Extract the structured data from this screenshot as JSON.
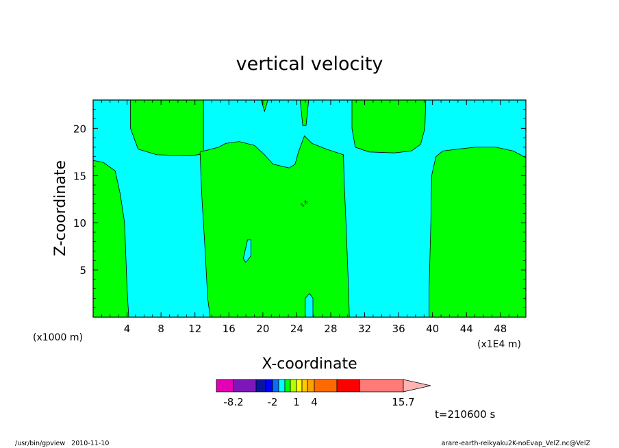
{
  "chart_data": {
    "type": "heatmap",
    "title": "vertical velocity",
    "xlabel": "X-coordinate",
    "ylabel": "Z-coordinate",
    "x_unit_left": "(x1000 m)",
    "x_unit_right": "(x1E4 m)",
    "xlim": [
      0,
      51
    ],
    "ylim": [
      0,
      23
    ],
    "xticks": [
      "4",
      "8",
      "12",
      "16",
      "20",
      "24",
      "28",
      "32",
      "36",
      "40",
      "44",
      "48"
    ],
    "yticks": [
      "5",
      "10",
      "15",
      "20"
    ],
    "xtick_values": [
      4,
      8,
      12,
      16,
      20,
      24,
      28,
      32,
      36,
      40,
      44,
      48
    ],
    "ytick_values": [
      5,
      10,
      15,
      20
    ],
    "regions": [
      {
        "label": "positive",
        "color": "#00ff00",
        "polygon": [
          [
            0,
            0
          ],
          [
            4.2,
            0
          ],
          [
            4.0,
            3
          ],
          [
            3.7,
            10
          ],
          [
            3.2,
            13
          ],
          [
            2.6,
            15.5
          ],
          [
            1.2,
            16.4
          ],
          [
            0,
            16.6
          ]
        ]
      },
      {
        "label": "positive",
        "color": "#00ff00",
        "polygon": [
          [
            4.4,
            23
          ],
          [
            4.4,
            20
          ],
          [
            5.3,
            17.8
          ],
          [
            7.5,
            17.2
          ],
          [
            11.5,
            17.1
          ],
          [
            13,
            17.3
          ],
          [
            13.0,
            23
          ]
        ]
      },
      {
        "label": "positive",
        "color": "#00ff00",
        "polygon": [
          [
            13.8,
            0
          ],
          [
            30.2,
            0
          ],
          [
            30.1,
            3
          ],
          [
            29.8,
            10
          ],
          [
            29.6,
            14
          ],
          [
            29.5,
            17.2
          ],
          [
            27.5,
            17.8
          ],
          [
            25.8,
            18.4
          ],
          [
            24.9,
            19.2
          ],
          [
            24.2,
            17.5
          ],
          [
            23.8,
            16.2
          ],
          [
            23.1,
            15.8
          ],
          [
            21.2,
            16.2
          ],
          [
            20.1,
            17.3
          ],
          [
            19.0,
            18.2
          ],
          [
            17.2,
            18.6
          ],
          [
            15.6,
            18.4
          ],
          [
            14.8,
            18.0
          ],
          [
            12.6,
            17.5
          ],
          [
            12.8,
            13
          ],
          [
            13.2,
            7
          ],
          [
            13.5,
            2
          ]
        ]
      },
      {
        "label": "positive",
        "color": "#00ff00",
        "polygon": [
          [
            19.8,
            23
          ],
          [
            20.2,
            21.8
          ],
          [
            20.6,
            23
          ]
        ]
      },
      {
        "label": "positive",
        "color": "#00ff00",
        "polygon": [
          [
            24.4,
            23
          ],
          [
            24.7,
            20.3
          ],
          [
            25.1,
            20.3
          ],
          [
            25.4,
            23
          ]
        ]
      },
      {
        "label": "positive",
        "color": "#00ff00",
        "polygon": [
          [
            30.5,
            23
          ],
          [
            30.5,
            20
          ],
          [
            30.9,
            18
          ],
          [
            32.5,
            17.5
          ],
          [
            35.5,
            17.4
          ],
          [
            37.5,
            17.6
          ],
          [
            38.6,
            18.3
          ],
          [
            39.1,
            20
          ],
          [
            39.2,
            23
          ]
        ]
      },
      {
        "label": "positive",
        "color": "#00ff00",
        "polygon": [
          [
            39.6,
            0
          ],
          [
            51,
            0
          ],
          [
            51,
            16.9
          ],
          [
            49.5,
            17.6
          ],
          [
            47.5,
            18.0
          ],
          [
            45.0,
            18.0
          ],
          [
            43.0,
            17.8
          ],
          [
            41.2,
            17.6
          ],
          [
            40.4,
            17.0
          ],
          [
            39.9,
            15
          ],
          [
            39.8,
            10
          ],
          [
            39.6,
            3
          ]
        ]
      },
      {
        "label": "negative",
        "color": "#00ffff",
        "polygon": [
          [
            17.7,
            6.2
          ],
          [
            18.2,
            8.2
          ],
          [
            18.6,
            8.2
          ],
          [
            18.6,
            6.5
          ],
          [
            18.0,
            5.8
          ]
        ]
      },
      {
        "label": "negative",
        "color": "#00ffff",
        "polygon": [
          [
            25.0,
            0
          ],
          [
            25.0,
            2.0
          ],
          [
            25.5,
            2.5
          ],
          [
            25.9,
            2.0
          ],
          [
            25.9,
            0
          ]
        ]
      }
    ],
    "contour_labels": [
      {
        "text": "1.6",
        "x": 25.0,
        "y": 11.9
      }
    ],
    "colorbar": {
      "colors": [
        "#e400b7",
        "#7e17b8",
        "#0a14a0",
        "#0000ff",
        "#0a6ef0",
        "#00ffff",
        "#00ff00",
        "#b4ff00",
        "#ffff00",
        "#ffc800",
        "#ffa000",
        "#ff6a00",
        "#ff0000",
        "#ff7b78",
        "#ffb4b4"
      ],
      "tick_labels": [
        "-8.2",
        "-2",
        "1",
        "4",
        "15.7"
      ]
    },
    "grid": false,
    "background_color": "#00ffff",
    "time_label": "t=210600 s"
  },
  "footer": {
    "left": "/usr/bin/gpview   2010-11-10",
    "right": "arare-earth-reikyaku2K-noEvap_VelZ.nc@VelZ"
  }
}
